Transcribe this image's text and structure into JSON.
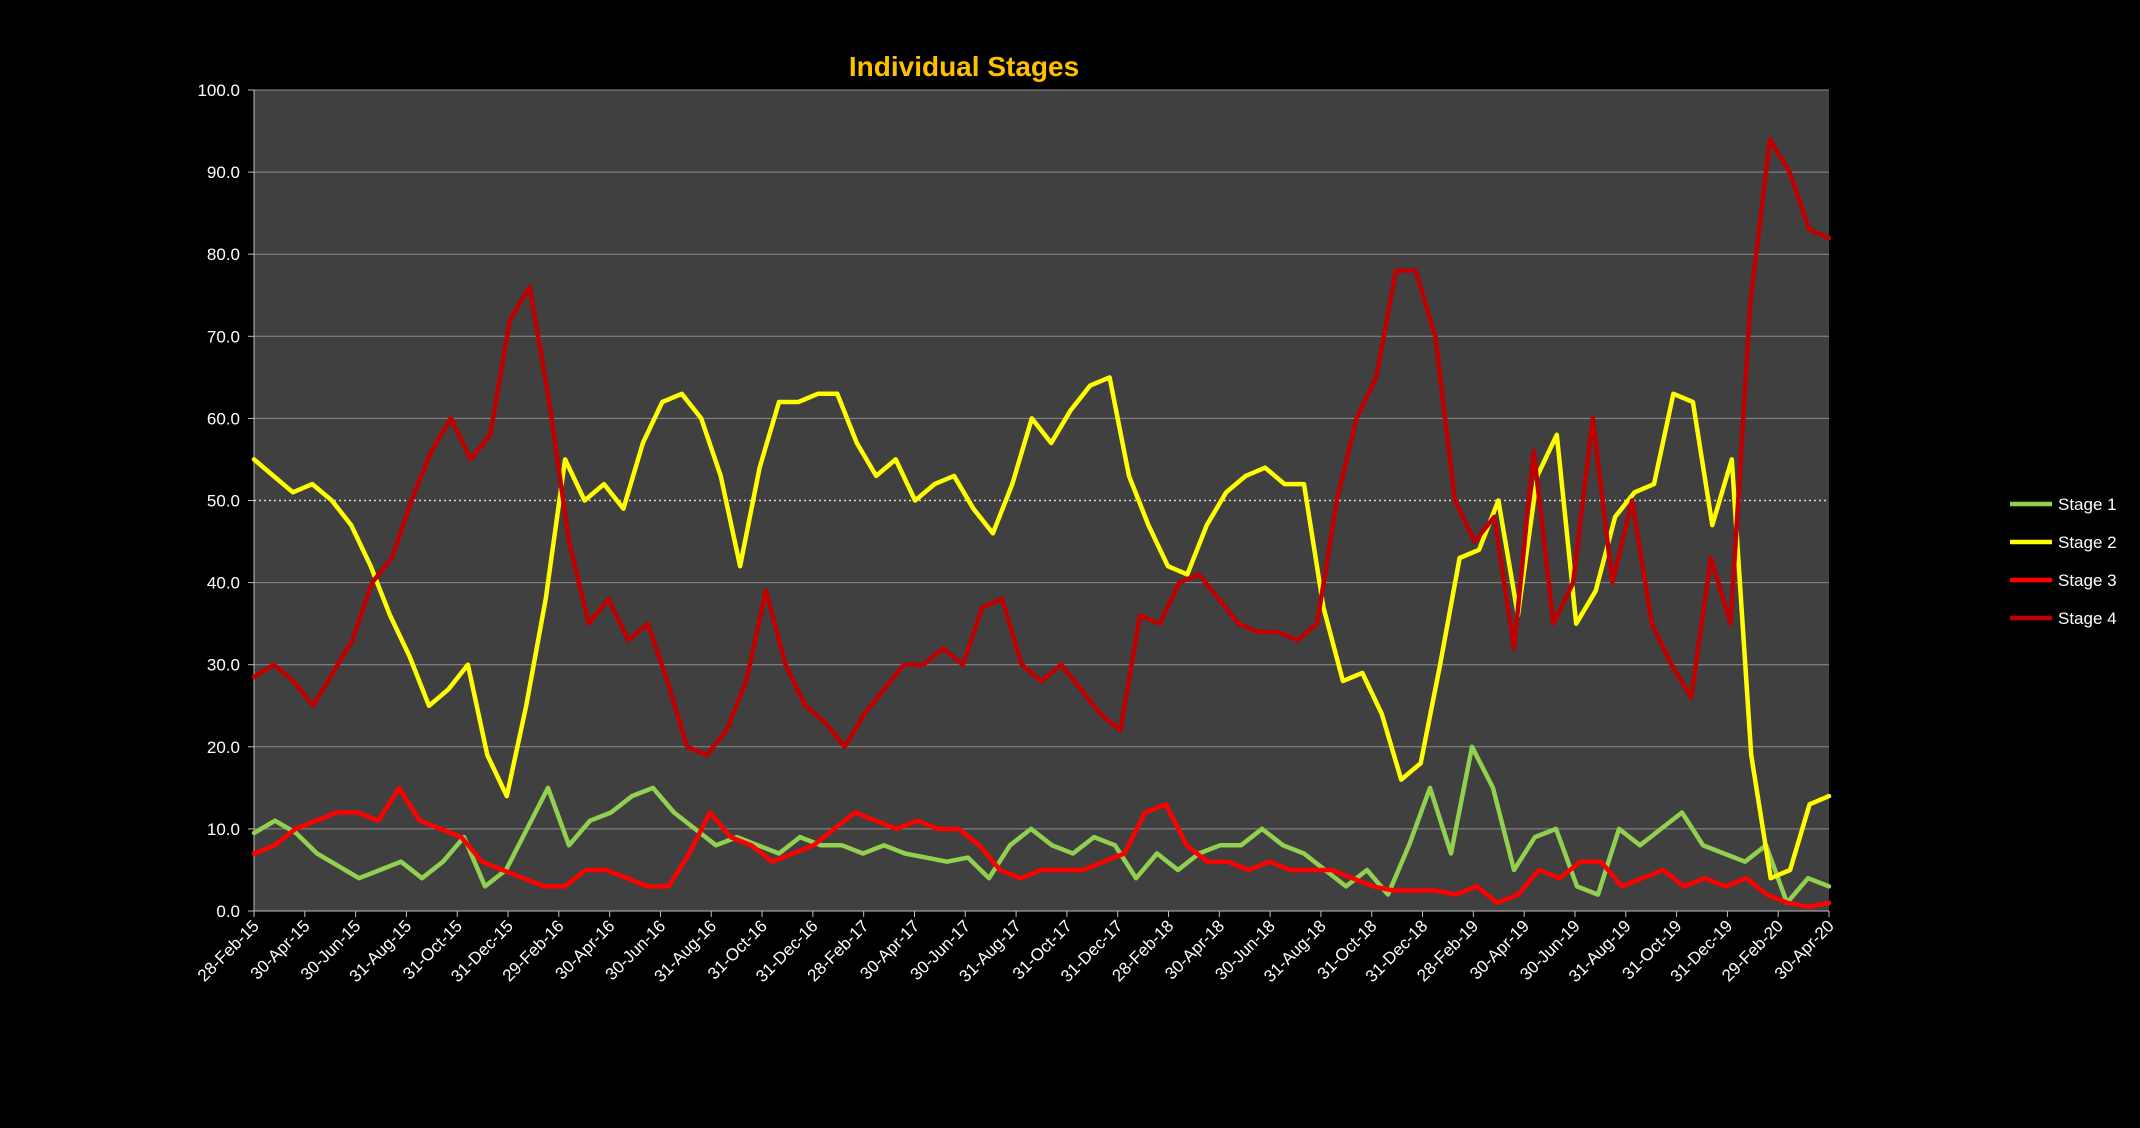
{
  "chart_data": {
    "type": "line",
    "title": "Individual Stages",
    "xlabel": "",
    "ylabel": "",
    "ylim": [
      0,
      100
    ],
    "y_ticks": [
      "0.0",
      "10.0",
      "20.0",
      "30.0",
      "40.0",
      "50.0",
      "60.0",
      "70.0",
      "80.0",
      "90.0",
      "100.0"
    ],
    "x_ticks": [
      "28-Feb-15",
      "30-Apr-15",
      "30-Jun-15",
      "31-Aug-15",
      "31-Oct-15",
      "31-Dec-15",
      "29-Feb-16",
      "30-Apr-16",
      "30-Jun-16",
      "31-Aug-16",
      "31-Oct-16",
      "31-Dec-16",
      "28-Feb-17",
      "30-Apr-17",
      "30-Jun-17",
      "31-Aug-17",
      "31-Oct-17",
      "31-Dec-17",
      "28-Feb-18",
      "30-Apr-18",
      "30-Jun-18",
      "31-Aug-18",
      "31-Oct-18",
      "31-Dec-18",
      "28-Feb-19",
      "30-Apr-19",
      "30-Jun-19",
      "31-Aug-19",
      "31-Oct-19",
      "31-Dec-19",
      "29-Feb-20",
      "30-Apr-20"
    ],
    "grid": "horizontal",
    "reference_line": 50,
    "legend_position": "right",
    "colors": {
      "background": "#000000",
      "plot_area": "#404040",
      "gridline": "#8c8c8c",
      "tick_text": "#ffffff",
      "title": "#ffc000"
    },
    "series": [
      {
        "name": "Stage 1",
        "color": "#92d050",
        "values": [
          9.5,
          11,
          9.5,
          7,
          5.5,
          4,
          5,
          6,
          4,
          6,
          9,
          3,
          5,
          10,
          15,
          8,
          11,
          12,
          14,
          15,
          12,
          10,
          8,
          9,
          8,
          7,
          9,
          8,
          8,
          7,
          8,
          7,
          6.5,
          6,
          6.5,
          4,
          8,
          10,
          8,
          7,
          9,
          8,
          4,
          7,
          5,
          7,
          8,
          8,
          10,
          8,
          7,
          5,
          3,
          5,
          2,
          8,
          15,
          7,
          20,
          15,
          5,
          9,
          10,
          3,
          2,
          10,
          8,
          10,
          12,
          8,
          7,
          6,
          8,
          1,
          4,
          3
        ]
      },
      {
        "name": "Stage 2",
        "color": "#ffff00",
        "values": [
          55,
          53,
          51,
          52,
          50,
          47,
          42,
          36,
          31,
          25,
          27,
          30,
          19,
          14,
          25,
          38,
          55,
          50,
          52,
          49,
          57,
          62,
          63,
          60,
          53,
          42,
          54,
          62,
          62,
          63,
          63,
          57,
          53,
          55,
          50,
          52,
          53,
          49,
          46,
          52,
          60,
          57,
          61,
          64,
          65,
          53,
          47,
          42,
          41,
          47,
          51,
          53,
          54,
          52,
          52,
          37,
          28,
          29,
          24,
          16,
          18,
          30,
          43,
          44,
          50,
          36,
          53,
          58,
          35,
          39,
          48,
          51,
          52,
          63,
          62,
          47,
          55,
          19,
          4,
          5,
          13,
          14
        ]
      },
      {
        "name": "Stage 3",
        "color": "#ff0000",
        "values": [
          7,
          8,
          10,
          11,
          12,
          12,
          11,
          15,
          11,
          10,
          9,
          6,
          5,
          4,
          3,
          3,
          5,
          5,
          4,
          3,
          3,
          7,
          12,
          9,
          8,
          6,
          7,
          8,
          10,
          12,
          11,
          10,
          11,
          10,
          10,
          8,
          5,
          4,
          5,
          5,
          5,
          6,
          7,
          12,
          13,
          8,
          6,
          6,
          5,
          6,
          5,
          5,
          5,
          4,
          3,
          2.5,
          2.5,
          2.5,
          2,
          3,
          1,
          2,
          5,
          4,
          6,
          6,
          3,
          4,
          5,
          3,
          4,
          3,
          4,
          2,
          1,
          0.5,
          1
        ]
      },
      {
        "name": "Stage 4",
        "color": "#c00000",
        "values": [
          28.5,
          30,
          28,
          25,
          29,
          33,
          40,
          43,
          50,
          56,
          60,
          55,
          58,
          72,
          76,
          62,
          45,
          35,
          38,
          33,
          35,
          28,
          20,
          19,
          22,
          28,
          39,
          30,
          25,
          23,
          20,
          24,
          27,
          30,
          30,
          32,
          30,
          37,
          38,
          30,
          28,
          30,
          27,
          24,
          22,
          36,
          35,
          40,
          41,
          38,
          35,
          34,
          34,
          33,
          35,
          50,
          60,
          65,
          78,
          78,
          70,
          50,
          45,
          48,
          32,
          56,
          35,
          40,
          60,
          40,
          50,
          35,
          30,
          26,
          43,
          35,
          74,
          94,
          90,
          83,
          82
        ]
      }
    ]
  }
}
